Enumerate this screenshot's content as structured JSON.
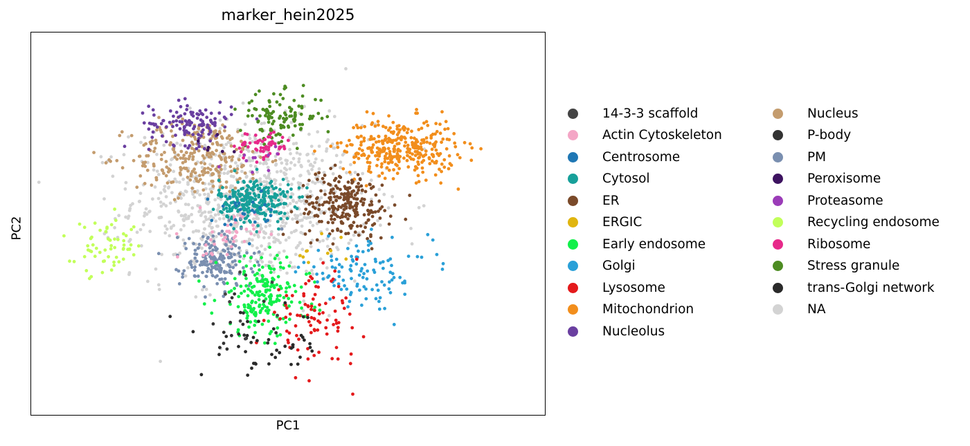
{
  "chart_data": {
    "type": "scatter",
    "title": "marker_hein2025",
    "xlabel": "PC1",
    "ylabel": "PC2",
    "xlim": [
      -10,
      10
    ],
    "ylim": [
      -8,
      8
    ],
    "grid": false,
    "legend_position": "right",
    "legend": [
      {
        "name": "14-3-3 scaffold",
        "color": "#444444"
      },
      {
        "name": "Actin Cytoskeleton",
        "color": "#f4a6c6"
      },
      {
        "name": "Centrosome",
        "color": "#1f77b4"
      },
      {
        "name": "Cytosol",
        "color": "#17a09a"
      },
      {
        "name": "ER",
        "color": "#7a4a2a"
      },
      {
        "name": "ERGIC",
        "color": "#e0b50f"
      },
      {
        "name": "Early endosome",
        "color": "#12f04a"
      },
      {
        "name": "Golgi",
        "color": "#2aa0d8"
      },
      {
        "name": "Lysosome",
        "color": "#e41a1c"
      },
      {
        "name": "Mitochondrion",
        "color": "#f28e1c"
      },
      {
        "name": "Nucleolus",
        "color": "#6a3fa0"
      },
      {
        "name": "Nucleus",
        "color": "#c49c6e"
      },
      {
        "name": "P-body",
        "color": "#333333"
      },
      {
        "name": "PM",
        "color": "#7a8fb0"
      },
      {
        "name": "Peroxisome",
        "color": "#3d1360"
      },
      {
        "name": "Proteasome",
        "color": "#9b3cb8"
      },
      {
        "name": "Recycling endosome",
        "color": "#c2ff5a"
      },
      {
        "name": "Ribosome",
        "color": "#e7298a"
      },
      {
        "name": "Stress granule",
        "color": "#4d8c22"
      },
      {
        "name": "trans-Golgi network",
        "color": "#2a2a2a"
      },
      {
        "name": "NA",
        "color": "#d3d3d3"
      }
    ],
    "clusters": [
      {
        "name": "NA",
        "center": [
          -1.5,
          1.0
        ],
        "spread": [
          4.5,
          3.2
        ],
        "count": 900
      },
      {
        "name": "Nucleus",
        "center": [
          -3.5,
          2.8
        ],
        "spread": [
          2.6,
          1.6
        ],
        "count": 260
      },
      {
        "name": "Nucleolus",
        "center": [
          -3.8,
          4.2
        ],
        "spread": [
          1.6,
          0.9
        ],
        "count": 120
      },
      {
        "name": "Stress granule",
        "center": [
          -0.3,
          4.5
        ],
        "spread": [
          1.6,
          1.0
        ],
        "count": 110
      },
      {
        "name": "Ribosome",
        "center": [
          -1.0,
          3.3
        ],
        "spread": [
          1.1,
          0.6
        ],
        "count": 60
      },
      {
        "name": "Mitochondrion",
        "center": [
          4.3,
          3.2
        ],
        "spread": [
          2.2,
          1.2
        ],
        "count": 330
      },
      {
        "name": "Cytosol",
        "center": [
          -1.3,
          1.0
        ],
        "spread": [
          1.4,
          0.9
        ],
        "count": 260
      },
      {
        "name": "ER",
        "center": [
          2.2,
          0.8
        ],
        "spread": [
          1.8,
          1.4
        ],
        "count": 240
      },
      {
        "name": "PM",
        "center": [
          -2.8,
          -1.5
        ],
        "spread": [
          1.4,
          1.2
        ],
        "count": 180
      },
      {
        "name": "Actin Cytoskeleton",
        "center": [
          -2.5,
          -0.5
        ],
        "spread": [
          1.2,
          1.0
        ],
        "count": 40
      },
      {
        "name": "Early endosome",
        "center": [
          -1.0,
          -3.0
        ],
        "spread": [
          1.8,
          1.6
        ],
        "count": 200
      },
      {
        "name": "Golgi",
        "center": [
          3.0,
          -2.0
        ],
        "spread": [
          2.5,
          1.4
        ],
        "count": 110
      },
      {
        "name": "Lysosome",
        "center": [
          1.0,
          -4.0
        ],
        "spread": [
          1.8,
          1.8
        ],
        "count": 90
      },
      {
        "name": "trans-Golgi network",
        "center": [
          -1.0,
          -5.0
        ],
        "spread": [
          2.4,
          1.4
        ],
        "count": 45
      },
      {
        "name": "P-body",
        "center": [
          -2.0,
          -4.5
        ],
        "spread": [
          2.0,
          1.5
        ],
        "count": 15
      },
      {
        "name": "14-3-3 scaffold",
        "center": [
          -1.5,
          -3.5
        ],
        "spread": [
          2.2,
          1.5
        ],
        "count": 8
      },
      {
        "name": "Recycling endosome",
        "center": [
          -7.0,
          -1.0
        ],
        "spread": [
          1.3,
          1.1
        ],
        "count": 60
      },
      {
        "name": "Centrosome",
        "center": [
          -1.8,
          0.5
        ],
        "spread": [
          1.5,
          1.0
        ],
        "count": 25
      },
      {
        "name": "ERGIC",
        "center": [
          1.5,
          -1.2
        ],
        "spread": [
          1.2,
          0.9
        ],
        "count": 10
      },
      {
        "name": "Proteasome",
        "center": [
          -1.2,
          2.5
        ],
        "spread": [
          1.5,
          0.8
        ],
        "count": 10
      },
      {
        "name": "Peroxisome",
        "center": [
          -2.5,
          3.5
        ],
        "spread": [
          1.2,
          0.8
        ],
        "count": 6
      }
    ]
  }
}
